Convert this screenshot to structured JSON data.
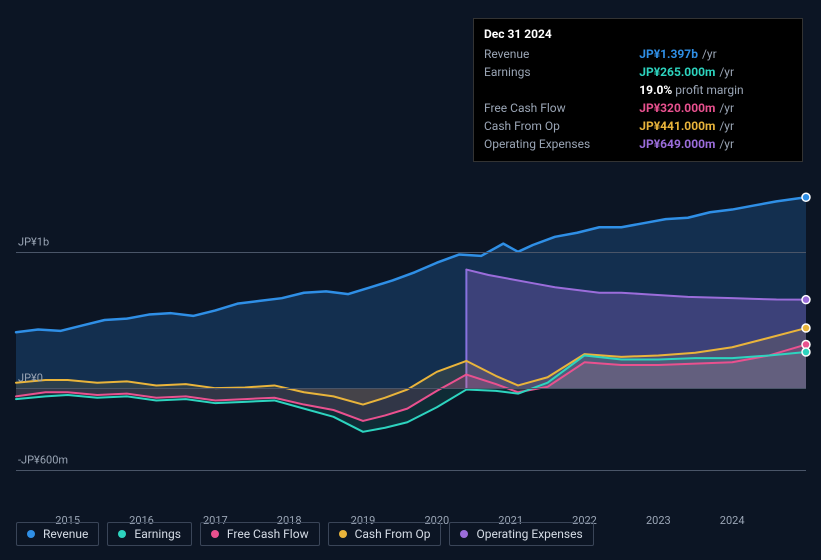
{
  "tooltip": {
    "date": "Dec 31 2024",
    "rows": [
      {
        "label": "Revenue",
        "value": "JP¥1.397b",
        "unit": "/yr",
        "color": "#2f8fe6"
      },
      {
        "label": "Earnings",
        "value": "JP¥265.000m",
        "unit": "/yr",
        "color": "#2dd4bf",
        "sub_pct": "19.0%",
        "sub_text": "profit margin"
      },
      {
        "label": "Free Cash Flow",
        "value": "JP¥320.000m",
        "unit": "/yr",
        "color": "#e9518f"
      },
      {
        "label": "Cash From Op",
        "value": "JP¥441.000m",
        "unit": "/yr",
        "color": "#e9b43b"
      },
      {
        "label": "Operating Expenses",
        "value": "JP¥649.000m",
        "unit": "/yr",
        "color": "#9b6ddb"
      }
    ]
  },
  "chart": {
    "type": "area-line",
    "background": "#0c1524",
    "grid_color": "#4a5568",
    "axis_text_color": "#9aa5b5",
    "x": {
      "min": 2014.3,
      "max": 2025.0,
      "ticks": [
        2015,
        2016,
        2017,
        2018,
        2019,
        2020,
        2021,
        2022,
        2023,
        2024
      ]
    },
    "y": {
      "min": -600,
      "max": 1600,
      "ticks": [
        {
          "v": 1000,
          "label": "JP¥1b"
        },
        {
          "v": 0,
          "label": "JP¥0"
        },
        {
          "v": -600,
          "label": "-JP¥600m"
        }
      ]
    },
    "vertical_marker_x": 2020.4,
    "series": [
      {
        "name": "Revenue",
        "color": "#2f8fe6",
        "fill": "rgba(47,143,230,0.22)",
        "width": 2.5,
        "points": [
          [
            2014.3,
            410
          ],
          [
            2014.6,
            430
          ],
          [
            2014.9,
            420
          ],
          [
            2015.2,
            460
          ],
          [
            2015.5,
            500
          ],
          [
            2015.8,
            510
          ],
          [
            2016.1,
            540
          ],
          [
            2016.4,
            550
          ],
          [
            2016.7,
            530
          ],
          [
            2017.0,
            570
          ],
          [
            2017.3,
            620
          ],
          [
            2017.6,
            640
          ],
          [
            2017.9,
            660
          ],
          [
            2018.2,
            700
          ],
          [
            2018.5,
            710
          ],
          [
            2018.8,
            690
          ],
          [
            2019.1,
            740
          ],
          [
            2019.4,
            790
          ],
          [
            2019.7,
            850
          ],
          [
            2020.0,
            920
          ],
          [
            2020.3,
            980
          ],
          [
            2020.6,
            970
          ],
          [
            2020.9,
            1060
          ],
          [
            2021.1,
            1000
          ],
          [
            2021.3,
            1050
          ],
          [
            2021.6,
            1110
          ],
          [
            2021.9,
            1140
          ],
          [
            2022.2,
            1180
          ],
          [
            2022.5,
            1180
          ],
          [
            2022.8,
            1210
          ],
          [
            2023.1,
            1240
          ],
          [
            2023.4,
            1250
          ],
          [
            2023.7,
            1290
          ],
          [
            2024.0,
            1310
          ],
          [
            2024.3,
            1340
          ],
          [
            2024.6,
            1370
          ],
          [
            2025.0,
            1400
          ]
        ]
      },
      {
        "name": "Operating Expenses",
        "color": "#9b6ddb",
        "fill": "rgba(155,109,219,0.30)",
        "width": 2,
        "start_x": 2020.4,
        "points": [
          [
            2020.4,
            870
          ],
          [
            2020.7,
            830
          ],
          [
            2021.0,
            800
          ],
          [
            2021.3,
            770
          ],
          [
            2021.6,
            740
          ],
          [
            2021.9,
            720
          ],
          [
            2022.2,
            700
          ],
          [
            2022.5,
            700
          ],
          [
            2022.8,
            690
          ],
          [
            2023.1,
            680
          ],
          [
            2023.4,
            670
          ],
          [
            2023.7,
            665
          ],
          [
            2024.0,
            660
          ],
          [
            2024.3,
            655
          ],
          [
            2024.6,
            650
          ],
          [
            2025.0,
            649
          ]
        ]
      },
      {
        "name": "Cash From Op",
        "color": "#e9b43b",
        "fill": "rgba(233,180,59,0.12)",
        "width": 2,
        "points": [
          [
            2014.3,
            40
          ],
          [
            2014.7,
            60
          ],
          [
            2015.0,
            60
          ],
          [
            2015.4,
            40
          ],
          [
            2015.8,
            50
          ],
          [
            2016.2,
            20
          ],
          [
            2016.6,
            30
          ],
          [
            2017.0,
            0
          ],
          [
            2017.4,
            5
          ],
          [
            2017.8,
            20
          ],
          [
            2018.2,
            -30
          ],
          [
            2018.6,
            -60
          ],
          [
            2019.0,
            -120
          ],
          [
            2019.3,
            -70
          ],
          [
            2019.6,
            -10
          ],
          [
            2020.0,
            120
          ],
          [
            2020.4,
            200
          ],
          [
            2020.8,
            90
          ],
          [
            2021.1,
            20
          ],
          [
            2021.5,
            80
          ],
          [
            2022.0,
            250
          ],
          [
            2022.5,
            230
          ],
          [
            2023.0,
            240
          ],
          [
            2023.5,
            260
          ],
          [
            2024.0,
            300
          ],
          [
            2024.5,
            370
          ],
          [
            2025.0,
            441
          ]
        ]
      },
      {
        "name": "Free Cash Flow",
        "color": "#e9518f",
        "fill": "rgba(233,81,143,0.18)",
        "width": 2,
        "points": [
          [
            2014.3,
            -60
          ],
          [
            2014.7,
            -30
          ],
          [
            2015.0,
            -30
          ],
          [
            2015.4,
            -50
          ],
          [
            2015.8,
            -40
          ],
          [
            2016.2,
            -70
          ],
          [
            2016.6,
            -60
          ],
          [
            2017.0,
            -90
          ],
          [
            2017.4,
            -80
          ],
          [
            2017.8,
            -70
          ],
          [
            2018.2,
            -120
          ],
          [
            2018.6,
            -160
          ],
          [
            2019.0,
            -240
          ],
          [
            2019.3,
            -200
          ],
          [
            2019.6,
            -150
          ],
          [
            2020.0,
            -20
          ],
          [
            2020.4,
            100
          ],
          [
            2020.8,
            30
          ],
          [
            2021.1,
            -30
          ],
          [
            2021.5,
            10
          ],
          [
            2022.0,
            190
          ],
          [
            2022.5,
            170
          ],
          [
            2023.0,
            170
          ],
          [
            2023.5,
            180
          ],
          [
            2024.0,
            190
          ],
          [
            2024.5,
            240
          ],
          [
            2025.0,
            320
          ]
        ]
      },
      {
        "name": "Earnings",
        "color": "#2dd4bf",
        "fill": "rgba(45,212,191,0.12)",
        "width": 2,
        "points": [
          [
            2014.3,
            -80
          ],
          [
            2014.7,
            -60
          ],
          [
            2015.0,
            -50
          ],
          [
            2015.4,
            -70
          ],
          [
            2015.8,
            -60
          ],
          [
            2016.2,
            -90
          ],
          [
            2016.6,
            -80
          ],
          [
            2017.0,
            -110
          ],
          [
            2017.4,
            -100
          ],
          [
            2017.8,
            -90
          ],
          [
            2018.2,
            -150
          ],
          [
            2018.6,
            -210
          ],
          [
            2019.0,
            -320
          ],
          [
            2019.3,
            -290
          ],
          [
            2019.6,
            -250
          ],
          [
            2020.0,
            -140
          ],
          [
            2020.4,
            -10
          ],
          [
            2020.8,
            -20
          ],
          [
            2021.1,
            -40
          ],
          [
            2021.5,
            40
          ],
          [
            2022.0,
            240
          ],
          [
            2022.5,
            210
          ],
          [
            2023.0,
            210
          ],
          [
            2023.5,
            220
          ],
          [
            2024.0,
            220
          ],
          [
            2024.5,
            240
          ],
          [
            2025.0,
            265
          ]
        ]
      }
    ],
    "legend": [
      {
        "label": "Revenue",
        "color": "#2f8fe6"
      },
      {
        "label": "Earnings",
        "color": "#2dd4bf"
      },
      {
        "label": "Free Cash Flow",
        "color": "#e9518f"
      },
      {
        "label": "Cash From Op",
        "color": "#e9b43b"
      },
      {
        "label": "Operating Expenses",
        "color": "#9b6ddb"
      }
    ]
  }
}
